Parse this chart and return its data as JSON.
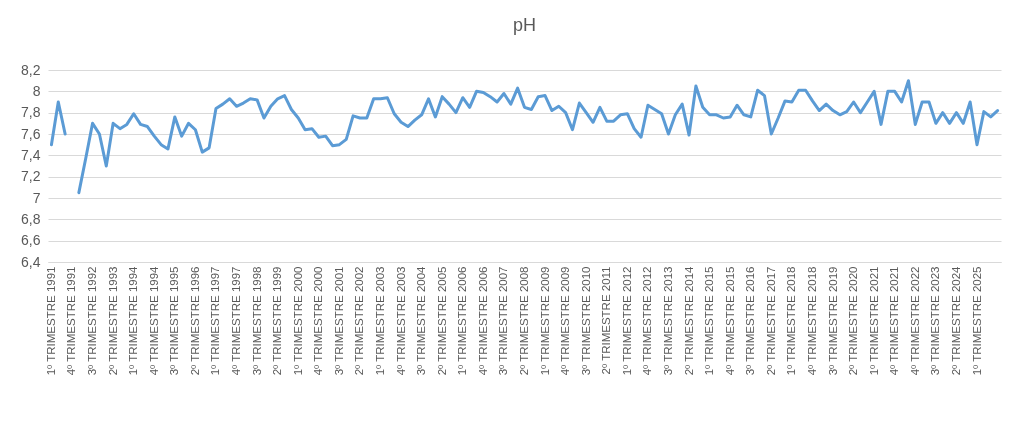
{
  "chart_data": {
    "type": "line",
    "title": "pH",
    "categories": [
      "1º TRIMESTRE 1991",
      null,
      null,
      "4º TRIMESTRE 1991",
      null,
      null,
      "3º TRIMESTRE 1992",
      null,
      null,
      "2º TRIMESTRE 1993",
      null,
      null,
      "1º TRIMESTRE 1994",
      null,
      null,
      "4º TRIMESTRE 1994",
      null,
      null,
      "3º TRIMESTRE 1995",
      null,
      null,
      "2º TRIMESTRE 1996",
      null,
      null,
      "1º TRIMESTRE 1997",
      null,
      null,
      "4º TRIMESTRE 1997",
      null,
      null,
      "3º TRIMESTRE 1998",
      null,
      null,
      "2º TRIMESTRE 1999",
      null,
      null,
      "1º TRIMESTRE 2000",
      null,
      null,
      "4º TRIMESTRE 2000",
      null,
      null,
      "3º TRIMESTRE 2001",
      null,
      null,
      "2º TRIMESTRE 2002",
      null,
      null,
      "1º TRIMESTRE 2003",
      null,
      null,
      "4º TRIMESTRE 2003",
      null,
      null,
      "3º TRIMESTRE 2004",
      null,
      null,
      "2º TRIMESTRE 2005",
      null,
      null,
      "1º TRIMESTRE 2006",
      null,
      null,
      "4º TRIMESTRE 2006",
      null,
      null,
      "3º TRIMESTRE 2007",
      null,
      null,
      "2º TRIMESTRE 2008",
      null,
      null,
      "1º TRIMESTRE 2009",
      null,
      null,
      "4º TRIMESTRE 2009",
      null,
      null,
      "3º TRIMESTRE 2010",
      null,
      null,
      "2º TRIMESTRE 2011",
      null,
      null,
      "1º TRIMESTRE 2012",
      null,
      null,
      "4º TRIMESTRE 2012",
      null,
      null,
      "3º TRIMESTRE 2013",
      null,
      null,
      "2º TRIMESTRE 2014",
      null,
      null,
      "1º TRIMESTRE 2015",
      null,
      null,
      "4º TRIMESTRE 2015",
      null,
      null,
      "3º TRIMESTRE 2016",
      null,
      null,
      "2º TRIMESTRE 2017",
      null,
      null,
      "1º TRIMESTRE 2018",
      null,
      null,
      "4º TRIMESTRE 2018",
      null,
      null,
      "3º TRIMESTRE 2019",
      null,
      null,
      "2º TRIMESTRE 2020",
      null,
      null,
      "1º TRIMESTRE 2021",
      null,
      null,
      "4º TRIMESTRE 2021",
      null,
      null,
      "4º TRIMESTRE 2022",
      null,
      null,
      "3º TRIMESTRE 2023",
      null,
      null,
      "2º TRIMESTRE 2024",
      null,
      null,
      "1º TRIMESTRE 2025",
      null,
      null,
      null
    ],
    "values": [
      7.5,
      7.9,
      7.6,
      null,
      7.05,
      7.37,
      7.7,
      7.6,
      7.3,
      7.7,
      7.65,
      7.69,
      7.79,
      7.69,
      7.67,
      7.58,
      7.5,
      7.46,
      7.76,
      7.58,
      7.7,
      7.64,
      7.43,
      7.47,
      7.84,
      7.88,
      7.93,
      7.86,
      7.89,
      7.93,
      7.92,
      7.75,
      7.86,
      7.93,
      7.96,
      7.83,
      7.75,
      7.64,
      7.65,
      7.57,
      7.58,
      7.49,
      7.5,
      7.55,
      7.77,
      7.75,
      7.75,
      7.93,
      7.93,
      7.94,
      7.79,
      7.71,
      7.67,
      7.73,
      7.78,
      7.93,
      7.76,
      7.95,
      7.88,
      7.8,
      7.94,
      7.85,
      8.0,
      7.99,
      7.95,
      7.9,
      7.98,
      7.88,
      8.03,
      7.85,
      7.83,
      7.95,
      7.96,
      7.82,
      7.86,
      7.8,
      7.64,
      7.89,
      7.8,
      7.71,
      7.85,
      7.72,
      7.72,
      7.78,
      7.79,
      7.65,
      7.57,
      7.87,
      7.83,
      7.79,
      7.6,
      7.78,
      7.88,
      7.59,
      8.05,
      7.85,
      7.78,
      7.78,
      7.75,
      7.76,
      7.87,
      7.78,
      7.76,
      8.01,
      7.96,
      7.6,
      7.75,
      7.91,
      7.9,
      8.01,
      8.01,
      7.91,
      7.82,
      7.88,
      7.82,
      7.78,
      7.81,
      7.9,
      7.8,
      7.9,
      8.0,
      7.69,
      8.0,
      8.0,
      7.9,
      8.1,
      7.69,
      7.9,
      7.9,
      7.7,
      7.8,
      7.7,
      7.8,
      7.7,
      7.9,
      7.5,
      7.81,
      7.76,
      7.82
    ],
    "color": "#5b9bd5",
    "ylim": [
      6.4,
      8.2
    ],
    "yticks": [
      {
        "value": 6.4,
        "label": "6,4"
      },
      {
        "value": 6.6,
        "label": "6,6"
      },
      {
        "value": 6.8,
        "label": "6,8"
      },
      7,
      {
        "value": 7.2,
        "label": "7,2"
      },
      {
        "value": 7.4,
        "label": "7,4"
      },
      {
        "value": 7.6,
        "label": "7,6"
      },
      {
        "value": 7.8,
        "label": "7,8"
      },
      8,
      {
        "value": 8.2,
        "label": "8,2"
      }
    ],
    "grid": "y"
  }
}
